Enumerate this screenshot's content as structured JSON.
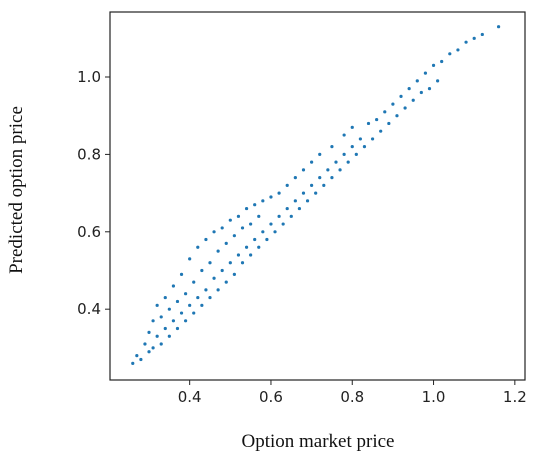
{
  "chart_data": {
    "type": "scatter",
    "xlabel": "Option market price",
    "ylabel": "Predicted option price",
    "color": "#1f77b4",
    "xlim": [
      0.204,
      1.225
    ],
    "ylim": [
      0.217,
      1.168
    ],
    "xticks": [
      0.4,
      0.6,
      0.8,
      {
        "value": 1,
        "label": "1.0"
      },
      1.2
    ],
    "yticks": [
      0.4,
      0.6,
      0.8,
      {
        "value": 1,
        "label": "1.0"
      }
    ],
    "x": [
      0.26,
      0.27,
      0.28,
      0.29,
      0.3,
      0.3,
      0.31,
      0.31,
      0.32,
      0.32,
      0.33,
      0.33,
      0.34,
      0.34,
      0.35,
      0.35,
      0.36,
      0.36,
      0.37,
      0.37,
      0.38,
      0.38,
      0.39,
      0.39,
      0.4,
      0.4,
      0.41,
      0.41,
      0.42,
      0.42,
      0.43,
      0.43,
      0.44,
      0.44,
      0.45,
      0.45,
      0.46,
      0.46,
      0.47,
      0.47,
      0.48,
      0.48,
      0.49,
      0.49,
      0.5,
      0.5,
      0.51,
      0.51,
      0.52,
      0.52,
      0.53,
      0.53,
      0.54,
      0.54,
      0.55,
      0.55,
      0.56,
      0.56,
      0.57,
      0.57,
      0.58,
      0.58,
      0.59,
      0.6,
      0.6,
      0.61,
      0.62,
      0.62,
      0.63,
      0.64,
      0.64,
      0.65,
      0.66,
      0.66,
      0.67,
      0.68,
      0.68,
      0.69,
      0.7,
      0.7,
      0.71,
      0.72,
      0.72,
      0.73,
      0.74,
      0.75,
      0.75,
      0.76,
      0.77,
      0.78,
      0.78,
      0.79,
      0.8,
      0.8,
      0.81,
      0.82,
      0.83,
      0.84,
      0.85,
      0.86,
      0.87,
      0.88,
      0.89,
      0.9,
      0.91,
      0.92,
      0.93,
      0.94,
      0.95,
      0.96,
      0.97,
      0.98,
      0.99,
      1.0,
      1.01,
      1.02,
      1.04,
      1.06,
      1.08,
      1.1,
      1.12,
      1.16
    ],
    "values": [
      0.26,
      0.28,
      0.27,
      0.31,
      0.29,
      0.34,
      0.3,
      0.37,
      0.33,
      0.41,
      0.31,
      0.38,
      0.35,
      0.43,
      0.33,
      0.4,
      0.37,
      0.46,
      0.35,
      0.42,
      0.39,
      0.49,
      0.37,
      0.44,
      0.41,
      0.53,
      0.39,
      0.47,
      0.43,
      0.56,
      0.41,
      0.5,
      0.45,
      0.58,
      0.43,
      0.52,
      0.48,
      0.6,
      0.45,
      0.55,
      0.5,
      0.61,
      0.47,
      0.57,
      0.52,
      0.63,
      0.49,
      0.59,
      0.54,
      0.64,
      0.52,
      0.61,
      0.56,
      0.66,
      0.54,
      0.62,
      0.58,
      0.67,
      0.56,
      0.64,
      0.6,
      0.68,
      0.58,
      0.62,
      0.69,
      0.6,
      0.64,
      0.7,
      0.62,
      0.66,
      0.72,
      0.64,
      0.68,
      0.74,
      0.66,
      0.7,
      0.76,
      0.68,
      0.72,
      0.78,
      0.7,
      0.74,
      0.8,
      0.72,
      0.76,
      0.74,
      0.82,
      0.78,
      0.76,
      0.8,
      0.85,
      0.78,
      0.82,
      0.87,
      0.8,
      0.84,
      0.82,
      0.88,
      0.84,
      0.89,
      0.86,
      0.91,
      0.88,
      0.93,
      0.9,
      0.95,
      0.92,
      0.97,
      0.94,
      0.99,
      0.96,
      1.01,
      0.97,
      1.03,
      0.99,
      1.04,
      1.06,
      1.07,
      1.09,
      1.1,
      1.11,
      1.13
    ]
  }
}
